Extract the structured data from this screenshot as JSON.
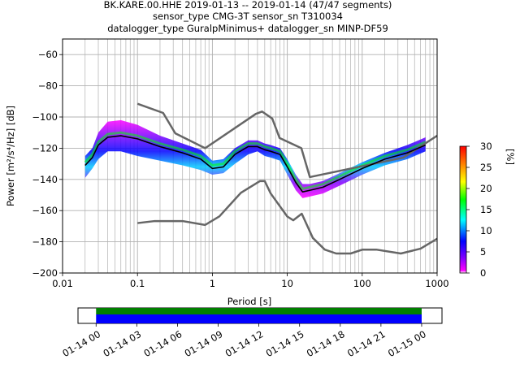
{
  "chart_data": [
    {
      "type": "heatmap",
      "title": [
        "BK.KARE.00.HHE   2019-01-13 -- 2019-01-14  (47/47 segments)",
        "sensor_type CMG-3T sensor_sn T310034",
        "datalogger_type GuralpMinimus+ datalogger_sn MINP-DF59"
      ],
      "xlabel": "Period [s]",
      "ylabel": "Power [m²/s⁴/Hz] [dB]",
      "xscale": "log",
      "xlim": [
        0.01,
        1000
      ],
      "ylim": [
        -200,
        -50
      ],
      "x_ticks": [
        0.01,
        0.1,
        1,
        10,
        100,
        1000
      ],
      "x_tick_labels": [
        "0.01",
        "0.1",
        "1",
        "10",
        "100",
        "1000"
      ],
      "y_ticks": [
        -200,
        -180,
        -160,
        -140,
        -120,
        -100,
        -80,
        -60
      ],
      "y_tick_labels": [
        "−200",
        "−180",
        "−160",
        "−140",
        "−120",
        "−100",
        "−80",
        "−60"
      ],
      "grid": true,
      "colorbar": {
        "label": "[%]",
        "range": [
          0,
          30
        ],
        "ticks": [
          0,
          5,
          10,
          15,
          20,
          25,
          30
        ],
        "tick_labels": [
          "0",
          "5",
          "10",
          "15",
          "20",
          "25",
          "30"
        ],
        "colormap": [
          "#ffffff",
          "#ff00ff",
          "#8000ff",
          "#0000ff",
          "#00ffff",
          "#00ff00",
          "#ffff00",
          "#ff8000",
          "#ff0000"
        ]
      },
      "series": [
        {
          "role": "high noise model",
          "color": "#666666",
          "x": [
            0.1,
            0.22,
            0.32,
            0.8,
            3.8,
            4.6,
            6.3,
            7.9,
            15.4,
            20,
            354.8,
            1000
          ],
          "y": [
            -91.5,
            -97.4,
            -110.5,
            -120,
            -98,
            -96.5,
            -101,
            -113.5,
            -120,
            -138.5,
            -126,
            -112
          ]
        },
        {
          "role": "low noise model",
          "color": "#666666",
          "x": [
            0.1,
            0.17,
            0.4,
            0.8,
            1.24,
            2.4,
            4.3,
            5,
            6,
            10,
            12,
            15.6,
            21.9,
            31.6,
            45,
            70,
            101,
            154,
            328,
            600,
            1000
          ],
          "y": [
            -168,
            -166.7,
            -166.7,
            -169.2,
            -163.7,
            -148.6,
            -141.1,
            -141.1,
            -149,
            -163.8,
            -166.2,
            -162,
            -177.5,
            -185,
            -187.5,
            -187.5,
            -185,
            -185,
            -187.5,
            -184.4,
            -178
          ]
        },
        {
          "role": "mean",
          "color": "#000000",
          "x": [
            0.02,
            0.025,
            0.03,
            0.04,
            0.06,
            0.1,
            0.2,
            0.4,
            0.7,
            1,
            1.4,
            2,
            3,
            4,
            5,
            6,
            8,
            10,
            13,
            16,
            20,
            30,
            50,
            100,
            200,
            400,
            700
          ],
          "y": [
            -131,
            -126,
            -118,
            -113,
            -112,
            -114,
            -119,
            -123,
            -127,
            -133,
            -132,
            -124,
            -119,
            -119,
            -121,
            -122,
            -124,
            -132,
            -142,
            -148,
            -147,
            -145,
            -140,
            -133,
            -127,
            -123,
            -118
          ]
        }
      ],
      "density_band": {
        "x": [
          0.02,
          0.025,
          0.03,
          0.04,
          0.06,
          0.1,
          0.2,
          0.4,
          0.7,
          1,
          1.4,
          2,
          3,
          4,
          5,
          6,
          8,
          10,
          13,
          16,
          20,
          30,
          50,
          100,
          200,
          400,
          700
        ],
        "upper": [
          -125,
          -120,
          -110,
          -103,
          -102,
          -105,
          -112,
          -117,
          -121,
          -128,
          -127,
          -120,
          -115,
          -115,
          -117,
          -118,
          -120,
          -127,
          -137,
          -143,
          -143,
          -141,
          -136,
          -129,
          -123,
          -118,
          -113
        ],
        "lower": [
          -139,
          -133,
          -127,
          -122,
          -122,
          -125,
          -128,
          -131,
          -134,
          -137,
          -136,
          -130,
          -124,
          -122,
          -125,
          -126,
          -128,
          -137,
          -147,
          -152,
          -151,
          -149,
          -144,
          -137,
          -131,
          -127,
          -122
        ]
      }
    },
    {
      "type": "timeline",
      "xlim": [
        "2019-01-13 22:40",
        "2019-01-15 01:30"
      ],
      "coverage": [
        "2019-01-14 00:00",
        "2019-01-15 00:00"
      ],
      "bar_colors": [
        "#008000",
        "#0000ff"
      ],
      "x_tick_labels": [
        "01-14 00",
        "01-14 03",
        "01-14 06",
        "01-14 09",
        "01-14 12",
        "01-14 15",
        "01-14 18",
        "01-14 21",
        "01-15 00"
      ]
    }
  ]
}
